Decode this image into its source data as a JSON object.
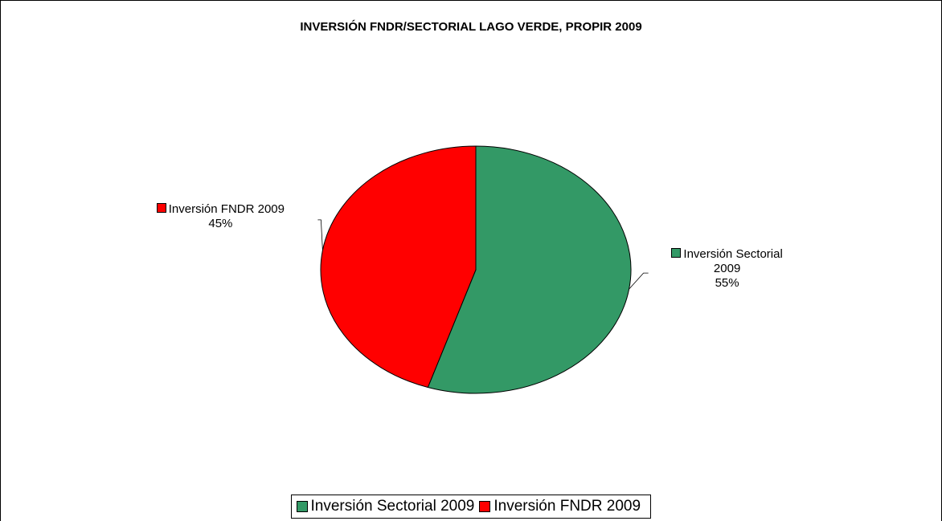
{
  "chart_data": {
    "type": "pie",
    "title": "INVERSIÓN FNDR/SECTORIAL LAGO VERDE, PROPIR 2009",
    "categories": [
      "Inversión Sectorial 2009",
      "Inversión FNDR 2009"
    ],
    "values": [
      55,
      45
    ],
    "value_labels": [
      "55%",
      "45%"
    ],
    "colors": [
      "#339966",
      "#ff0000"
    ],
    "legend": "bottom"
  }
}
